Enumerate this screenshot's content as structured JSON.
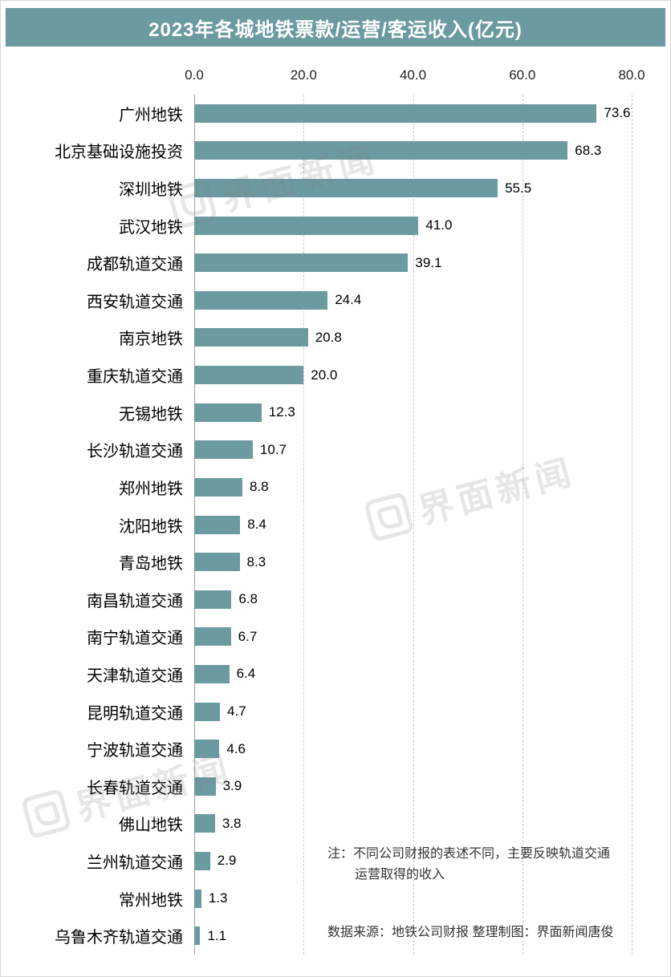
{
  "header": {
    "title": "2023年各城地铁票款/运营/客运收入(亿元)"
  },
  "watermark": {
    "text": "界面新闻"
  },
  "note": {
    "line1": "注：不同公司财报的表述不同，主要反映轨道交通",
    "line2": "运营取得的收入"
  },
  "source": "数据来源：地铁公司财报  整理制图：界面新闻唐俊",
  "chart_data": {
    "type": "bar",
    "orientation": "horizontal",
    "title": "2023年各城地铁票款/运营/客运收入(亿元)",
    "xlabel": "",
    "ylabel": "",
    "xlim": [
      0,
      80
    ],
    "xticks": [
      {
        "value": 0,
        "label": "0.0"
      },
      {
        "value": 20,
        "label": "20.0"
      },
      {
        "value": 40,
        "label": "40.0"
      },
      {
        "value": 60,
        "label": "60.0"
      },
      {
        "value": 80,
        "label": "80.0"
      }
    ],
    "grid": "vertical-dashed",
    "bar_color": "#6b9aa1",
    "categories": [
      "广州地铁",
      "北京基础设施投资",
      "深圳地铁",
      "武汉地铁",
      "成都轨道交通",
      "西安轨道交通",
      "南京地铁",
      "重庆轨道交通",
      "无锡地铁",
      "长沙轨道交通",
      "郑州地铁",
      "沈阳地铁",
      "青岛地铁",
      "南昌轨道交通",
      "南宁轨道交通",
      "天津轨道交通",
      "昆明轨道交通",
      "宁波轨道交通",
      "长春轨道交通",
      "佛山地铁",
      "兰州轨道交通",
      "常州地铁",
      "乌鲁木齐轨道交通"
    ],
    "values": [
      73.6,
      68.3,
      55.5,
      41.0,
      39.1,
      24.4,
      20.8,
      20.0,
      12.3,
      10.7,
      8.8,
      8.4,
      8.3,
      6.8,
      6.7,
      6.4,
      4.7,
      4.6,
      3.9,
      3.8,
      2.9,
      1.3,
      1.1
    ],
    "value_labels": [
      "73.6",
      "68.3",
      "55.5",
      "41.0",
      "39.1",
      "24.4",
      "20.8",
      "20.0",
      "12.3",
      "10.7",
      "8.8",
      "8.4",
      "8.3",
      "6.8",
      "6.7",
      "6.4",
      "4.7",
      "4.6",
      "3.9",
      "3.8",
      "2.9",
      "1.3",
      "1.1"
    ]
  }
}
